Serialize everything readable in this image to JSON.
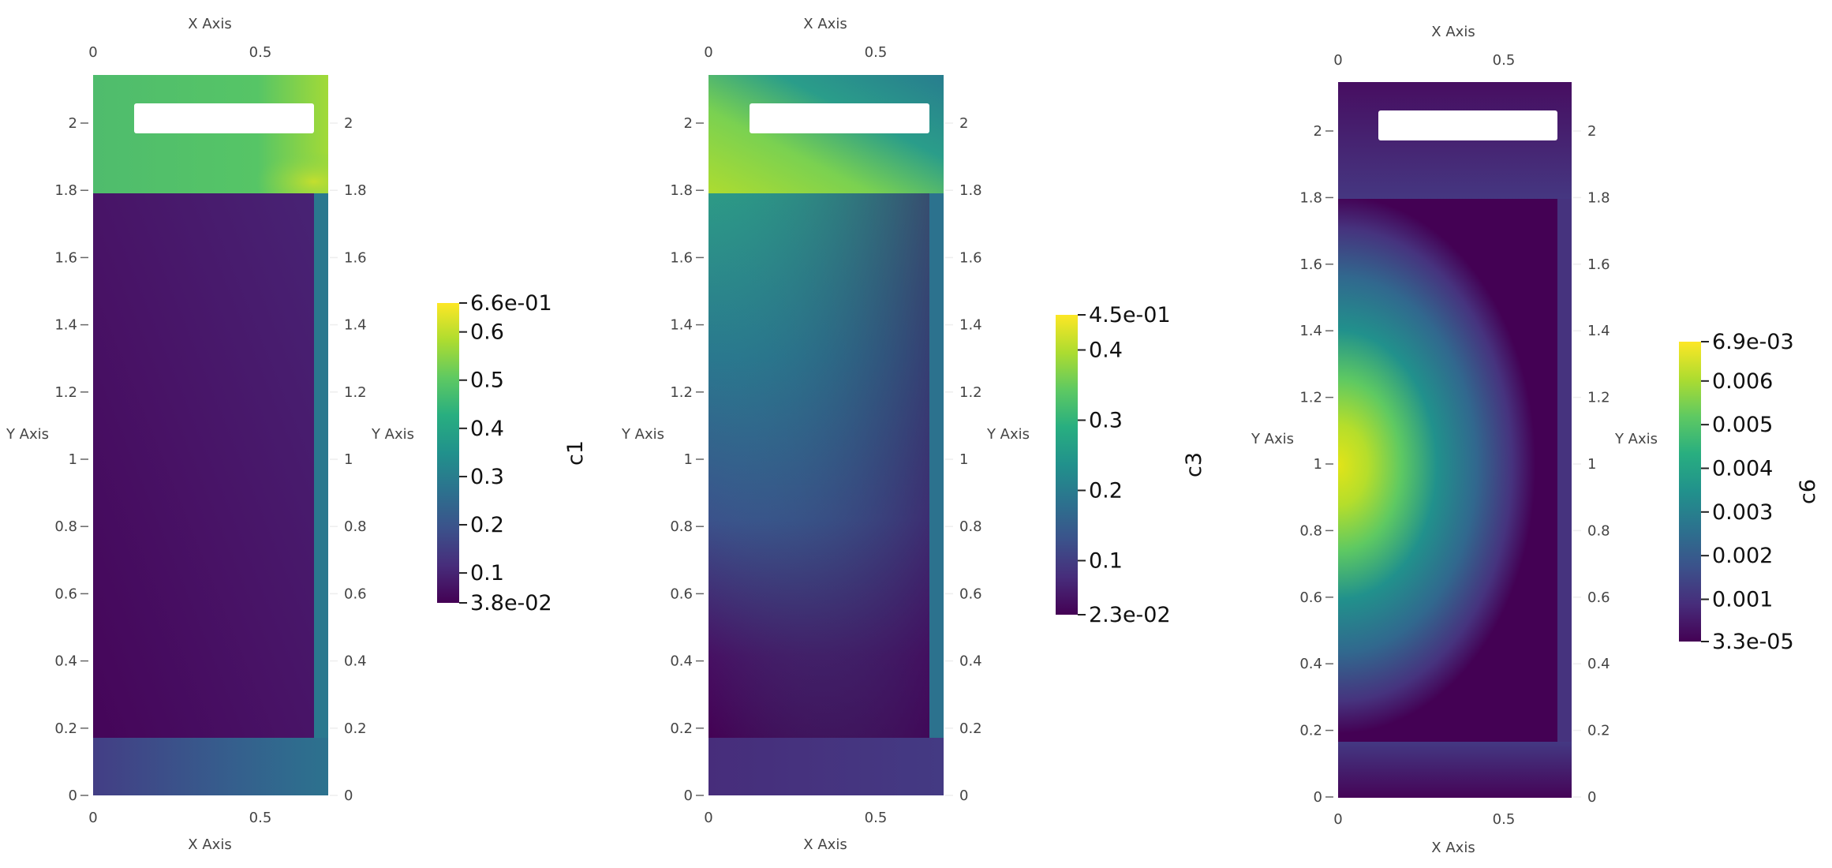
{
  "chart_data": [
    {
      "type": "heatmap",
      "field": "c1",
      "colormap": "viridis",
      "xlabel": "X Axis",
      "ylabel": "Y Axis",
      "xlim": [
        0,
        0.7
      ],
      "ylim": [
        0,
        2.15
      ],
      "x_ticks": [
        "0",
        "0.5"
      ],
      "y_ticks": [
        "0",
        "0.2",
        "0.4",
        "0.6",
        "0.8",
        "1",
        "1.2",
        "1.4",
        "1.6",
        "1.8",
        "2"
      ],
      "colorbar": {
        "title": "c1",
        "min": 0.038,
        "max": 0.66,
        "min_label": "3.8e-02",
        "max_label": "6.6e-01",
        "ticks": [
          {
            "value": 0.1,
            "label": "0.1"
          },
          {
            "value": 0.2,
            "label": "0.2"
          },
          {
            "value": 0.3,
            "label": "0.3"
          },
          {
            "value": 0.4,
            "label": "0.4"
          },
          {
            "value": 0.5,
            "label": "0.5"
          },
          {
            "value": 0.6,
            "label": "0.6"
          }
        ]
      },
      "regions": [
        {
          "name": "top-layer",
          "x": [
            0,
            0.7
          ],
          "y": [
            1.8,
            2.15
          ],
          "value_range": [
            0.45,
            0.66
          ]
        },
        {
          "name": "main-domain",
          "x": [
            0,
            0.66
          ],
          "y": [
            0.18,
            1.8
          ],
          "value_range": [
            0.04,
            0.12
          ]
        },
        {
          "name": "right-strip",
          "x": [
            0.66,
            0.7
          ],
          "y": [
            0.18,
            1.8
          ],
          "value_range": [
            0.35,
            0.4
          ]
        },
        {
          "name": "bottom-layer",
          "x": [
            0,
            0.7
          ],
          "y": [
            0,
            0.18
          ],
          "value_range": [
            0.15,
            0.35
          ]
        },
        {
          "name": "hole",
          "x": [
            0.12,
            0.66
          ],
          "y": [
            1.97,
            2.07
          ],
          "value_range": null
        }
      ]
    },
    {
      "type": "heatmap",
      "field": "c3",
      "colormap": "viridis",
      "xlabel": "X Axis",
      "ylabel": "Y Axis",
      "xlim": [
        0,
        0.7
      ],
      "ylim": [
        0,
        2.15
      ],
      "x_ticks": [
        "0",
        "0.5"
      ],
      "y_ticks": [
        "0",
        "0.2",
        "0.4",
        "0.6",
        "0.8",
        "1",
        "1.2",
        "1.4",
        "1.6",
        "1.8",
        "2"
      ],
      "colorbar": {
        "title": "c3",
        "min": 0.023,
        "max": 0.45,
        "min_label": "2.3e-02",
        "max_label": "4.5e-01",
        "ticks": [
          {
            "value": 0.1,
            "label": "0.1"
          },
          {
            "value": 0.2,
            "label": "0.2"
          },
          {
            "value": 0.3,
            "label": "0.3"
          },
          {
            "value": 0.4,
            "label": "0.4"
          }
        ]
      },
      "regions": [
        {
          "name": "top-layer",
          "x": [
            0,
            0.7
          ],
          "y": [
            1.8,
            2.15
          ],
          "value_range": [
            0.2,
            0.4
          ]
        },
        {
          "name": "main-domain",
          "x": [
            0,
            0.66
          ],
          "y": [
            0.18,
            1.8
          ],
          "value_range": [
            0.03,
            0.25
          ]
        },
        {
          "name": "right-strip",
          "x": [
            0.66,
            0.7
          ],
          "y": [
            0.18,
            1.8
          ],
          "value_range": [
            0.2,
            0.22
          ]
        },
        {
          "name": "bottom-layer",
          "x": [
            0,
            0.7
          ],
          "y": [
            0,
            0.18
          ],
          "value_range": [
            0.06,
            0.1
          ]
        },
        {
          "name": "hole",
          "x": [
            0.12,
            0.66
          ],
          "y": [
            1.97,
            2.07
          ],
          "value_range": null
        }
      ]
    },
    {
      "type": "heatmap",
      "field": "c6",
      "colormap": "viridis",
      "xlabel": "X Axis",
      "ylabel": "Y Axis",
      "xlim": [
        0,
        0.7
      ],
      "ylim": [
        0,
        2.15
      ],
      "x_ticks": [
        "0",
        "0.5"
      ],
      "y_ticks": [
        "0",
        "0.2",
        "0.4",
        "0.6",
        "0.8",
        "1",
        "1.2",
        "1.4",
        "1.6",
        "1.8",
        "2"
      ],
      "colorbar": {
        "title": "c6",
        "min": 3.3e-05,
        "max": 0.0069,
        "min_label": "3.3e-05",
        "max_label": "6.9e-03",
        "ticks": [
          {
            "value": 0.001,
            "label": "0.001"
          },
          {
            "value": 0.002,
            "label": "0.002"
          },
          {
            "value": 0.003,
            "label": "0.003"
          },
          {
            "value": 0.004,
            "label": "0.004"
          },
          {
            "value": 0.005,
            "label": "0.005"
          },
          {
            "value": 0.006,
            "label": "0.006"
          }
        ]
      },
      "regions": [
        {
          "name": "top-layer",
          "x": [
            0,
            0.7
          ],
          "y": [
            1.8,
            2.15
          ],
          "value_range": [
            0.0003,
            0.0009
          ]
        },
        {
          "name": "main-domain",
          "x": [
            0,
            0.66
          ],
          "y": [
            0.18,
            1.8
          ],
          "value_range": [
            0.0003,
            0.0062
          ]
        },
        {
          "name": "right-strip",
          "x": [
            0.66,
            0.7
          ],
          "y": [
            0.18,
            1.8
          ],
          "value_range": [
            0.0002,
            0.0004
          ]
        },
        {
          "name": "bottom-layer",
          "x": [
            0,
            0.7
          ],
          "y": [
            0,
            0.18
          ],
          "value_range": [
            0.0003,
            0.0009
          ]
        },
        {
          "name": "hole",
          "x": [
            0.12,
            0.66
          ],
          "y": [
            1.97,
            2.07
          ],
          "value_range": null
        }
      ]
    }
  ]
}
